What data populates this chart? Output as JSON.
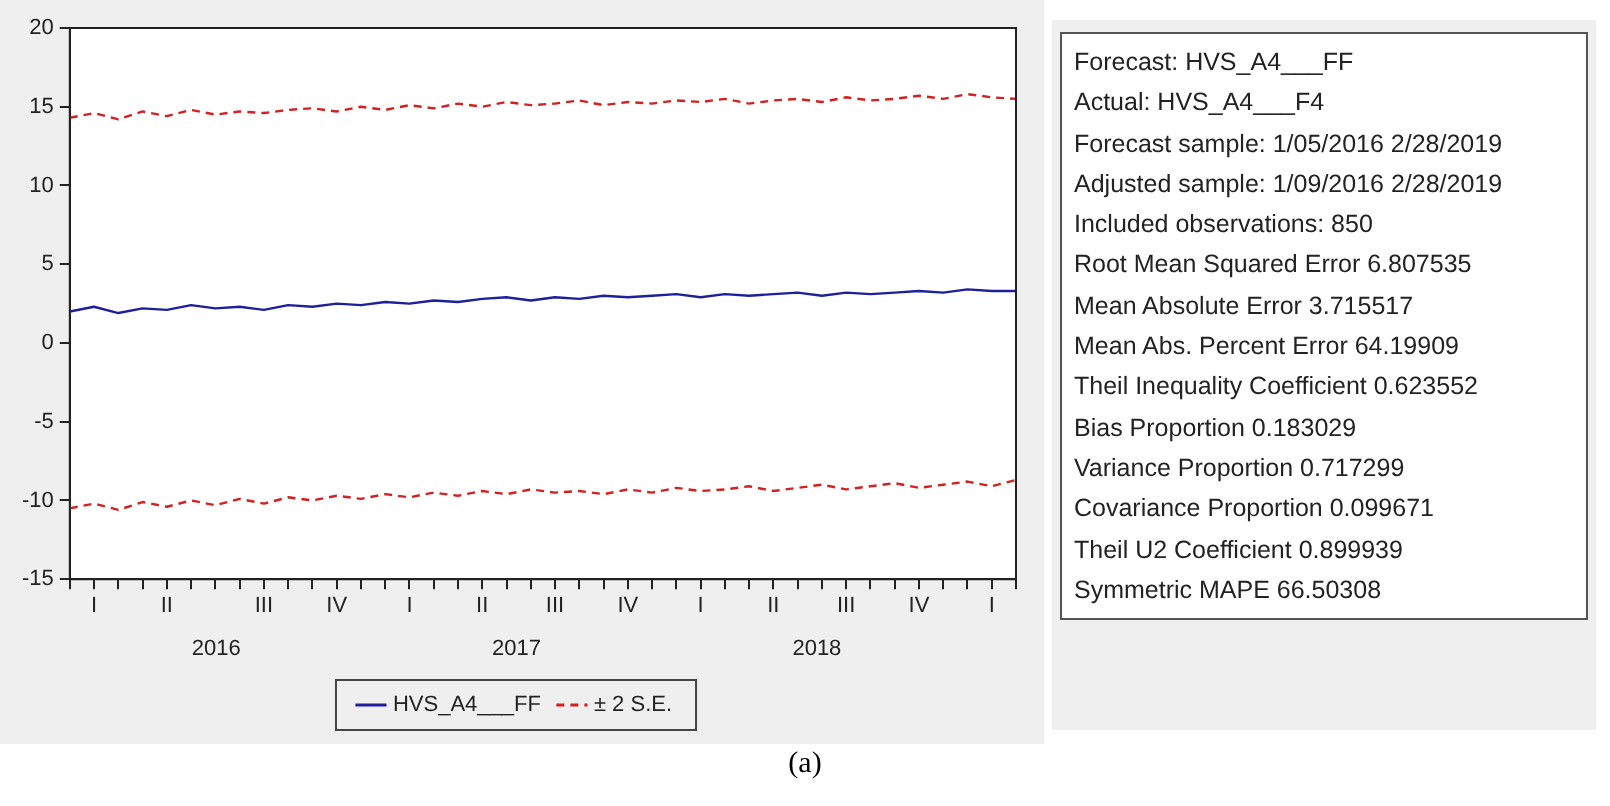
{
  "chart_data": [
    {
      "type": "line",
      "categories": [
        null,
        "I",
        null,
        null,
        "II",
        null,
        null,
        null,
        "III",
        null,
        null,
        "IV",
        null,
        null,
        "I",
        null,
        null,
        "II",
        null,
        null,
        "III",
        null,
        null,
        "IV",
        null,
        null,
        "I",
        null,
        null,
        "II",
        null,
        null,
        "III",
        null,
        null,
        "IV",
        null,
        null,
        "I",
        null
      ],
      "series": [
        {
          "name": "HVS_A4___FF",
          "color": "#1f1f9c",
          "line_style": "solid",
          "values": [
            2.0,
            2.3,
            1.9,
            2.2,
            2.1,
            2.4,
            2.2,
            2.3,
            2.1,
            2.4,
            2.3,
            2.5,
            2.4,
            2.6,
            2.5,
            2.7,
            2.6,
            2.8,
            2.9,
            2.7,
            2.9,
            2.8,
            3.0,
            2.9,
            3.0,
            3.1,
            2.9,
            3.1,
            3.0,
            3.1,
            3.2,
            3.0,
            3.2,
            3.1,
            3.2,
            3.3,
            3.2,
            3.4,
            3.3,
            3.3
          ]
        },
        {
          "name": "± 2 S.E.",
          "color": "#d42020",
          "line_style": "dashed",
          "values": [
            14.3,
            14.6,
            14.2,
            14.7,
            14.4,
            14.8,
            14.5,
            14.7,
            14.6,
            14.8,
            14.9,
            14.7,
            15.0,
            14.8,
            15.1,
            14.9,
            15.2,
            15.0,
            15.3,
            15.1,
            15.2,
            15.4,
            15.1,
            15.3,
            15.2,
            15.4,
            15.3,
            15.5,
            15.2,
            15.4,
            15.5,
            15.3,
            15.6,
            15.4,
            15.5,
            15.7,
            15.5,
            15.8,
            15.6,
            15.5
          ]
        },
        {
          "color": "#d42020",
          "line_style": "dashed",
          "values": [
            -10.5,
            -10.2,
            -10.6,
            -10.1,
            -10.4,
            -10.0,
            -10.3,
            -9.9,
            -10.2,
            -9.8,
            -10.0,
            -9.7,
            -9.9,
            -9.6,
            -9.8,
            -9.5,
            -9.7,
            -9.4,
            -9.6,
            -9.3,
            -9.5,
            -9.4,
            -9.6,
            -9.3,
            -9.5,
            -9.2,
            -9.4,
            -9.3,
            -9.1,
            -9.4,
            -9.2,
            -9.0,
            -9.3,
            -9.1,
            -8.9,
            -9.2,
            -9.0,
            -8.8,
            -9.1,
            -8.7
          ]
        }
      ],
      "x2lim": [
        "2016-01-05",
        "2019-02-28"
      ],
      "x2ticks": [
        {
          "value": "2016-07-01",
          "label": "2016"
        },
        {
          "value": "2017-07-01",
          "label": "2017"
        },
        {
          "value": "2018-07-01",
          "label": "2018"
        }
      ],
      "ylim": [
        -15,
        20
      ],
      "yticks": [
        -15,
        -10,
        -5,
        0,
        5,
        10,
        15,
        20
      ],
      "grid": false,
      "legend": "bottom",
      "marker": "none",
      "annotations": [
        "(a)"
      ]
    },
    {
      "type": "other",
      "annotations": [
        "Forecast: HVS_A4___FF",
        "Actual: HVS_A4___F4",
        "Forecast sample: 1/05/2016 2/28/2019",
        "Adjusted sample: 1/09/2016 2/28/2019",
        "Included observations: 850",
        "Root Mean Squared Error 6.807535",
        "Mean Absolute Error 3.715517",
        "Mean Abs. Percent Error 64.19909",
        "Theil Inequality Coefficient 0.623552",
        "Bias Proportion 0.183029",
        "Variance Proportion 0.717299",
        "Covariance Proportion 0.099671",
        "Theil U2 Coefficient 0.899939",
        "Symmetric MAPE 66.50308"
      ]
    }
  ]
}
